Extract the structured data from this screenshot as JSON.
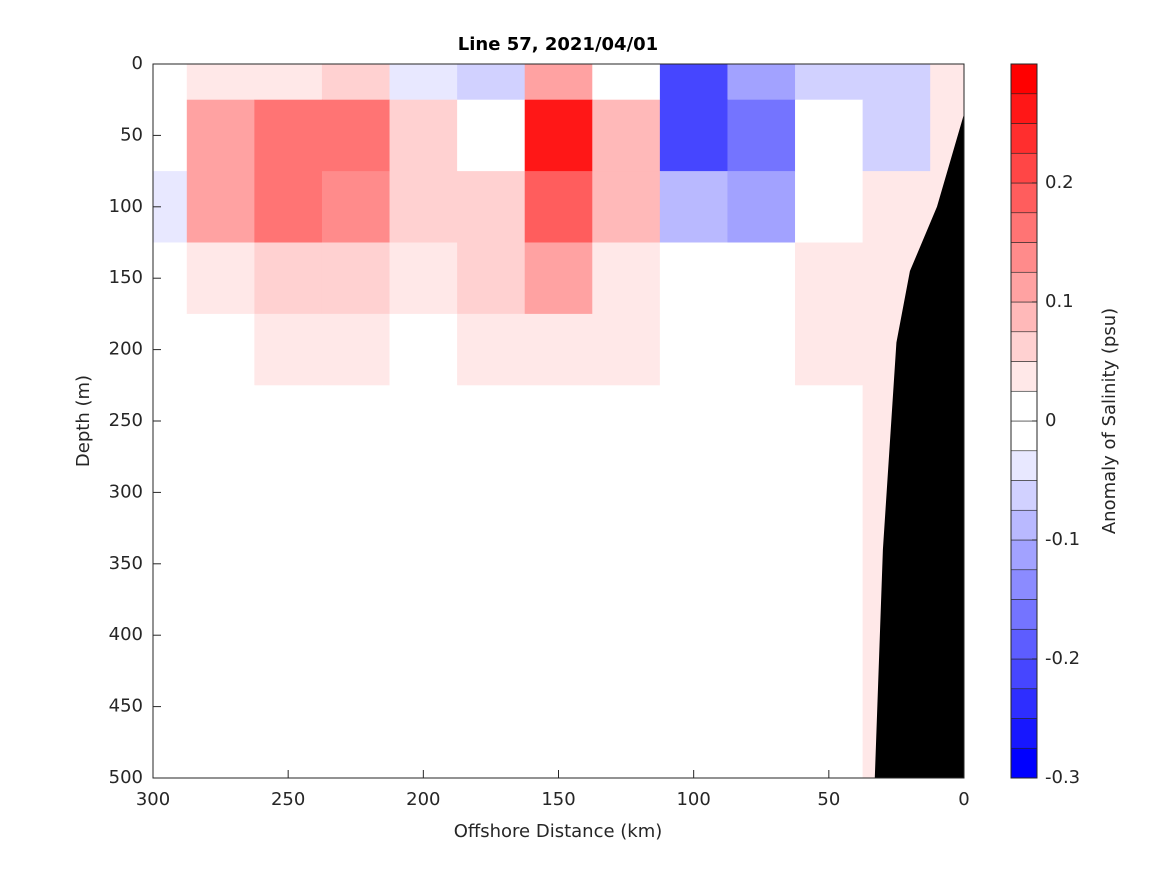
{
  "chart_data": {
    "type": "contourf",
    "title": "Line 57, 2021/04/01",
    "xlabel": "Offshore Distance (km)",
    "ylabel": "Depth (m)",
    "colorbar_label": "Anomaly of Salinity (psu)",
    "x": [
      300,
      275,
      250,
      225,
      200,
      175,
      150,
      125,
      100,
      75,
      50,
      25,
      0
    ],
    "depth": [
      0,
      50,
      100,
      150,
      200,
      250,
      300,
      350,
      400,
      450,
      500
    ],
    "z": [
      [
        0,
        0.03,
        0.04,
        0.05,
        -0.03,
        -0.06,
        0.1,
        0,
        -0.2,
        -0.12,
        -0.05,
        -0.07,
        0.04
      ],
      [
        0,
        0.12,
        0.17,
        0.17,
        0.06,
        -0.02,
        0.25,
        0.08,
        -0.2,
        -0.17,
        -0.02,
        -0.05,
        0.03
      ],
      [
        -0.03,
        0.12,
        0.15,
        0.14,
        0.07,
        0.05,
        0.18,
        0.08,
        -0.08,
        -0.12,
        0.02,
        0.03,
        0.03
      ],
      [
        0,
        0.03,
        0.07,
        0.05,
        0.03,
        0.05,
        0.1,
        0.03,
        -0.02,
        0,
        0.03,
        0.03,
        0.03
      ],
      [
        0,
        0,
        0.03,
        0.03,
        0.02,
        0.03,
        0.04,
        0.03,
        0,
        0.01,
        0.03,
        0.03,
        0.03
      ],
      [
        0,
        0,
        0,
        0,
        0,
        0.01,
        0.01,
        0.02,
        0,
        0.01,
        0.02,
        0.03,
        0.03
      ],
      [
        0,
        0,
        0,
        0,
        0,
        0.02,
        0.02,
        0.02,
        0,
        0.01,
        0.02,
        0.03,
        0.03
      ],
      [
        0,
        0,
        0,
        0,
        0,
        0,
        0.02,
        0.01,
        0,
        0,
        0.02,
        0.03,
        0.03
      ],
      [
        0,
        0,
        0,
        0,
        0,
        0,
        0.02,
        0,
        0,
        0.01,
        0.02,
        0.03,
        0.03
      ],
      [
        0,
        0,
        0,
        0,
        0,
        0,
        0.02,
        0,
        0,
        0.01,
        0.02,
        0.03,
        0.03
      ],
      [
        0,
        0,
        0,
        0,
        0,
        0,
        0.02,
        0,
        0,
        0.02,
        0.02,
        0.03,
        0.03
      ]
    ],
    "bottom": {
      "x": [
        0,
        10,
        20,
        25,
        30,
        33
      ],
      "depth": [
        35,
        100,
        145,
        195,
        340,
        500
      ]
    },
    "xlim": [
      300,
      0
    ],
    "xticks": [
      300,
      250,
      200,
      150,
      100,
      50,
      0
    ],
    "ylim": [
      0,
      500
    ],
    "yticks": [
      0,
      50,
      100,
      150,
      200,
      250,
      300,
      350,
      400,
      450,
      500
    ],
    "clim": [
      -0.3,
      0.3
    ],
    "cticks": [
      -0.3,
      -0.2,
      -0.1,
      0,
      0.1,
      0.2
    ],
    "contour_step": 0.025
  }
}
